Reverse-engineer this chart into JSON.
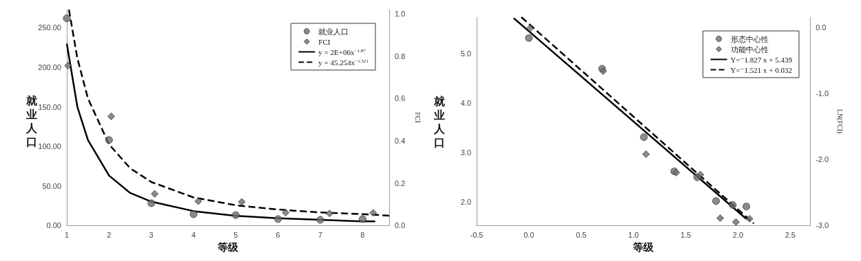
{
  "chart_data": [
    {
      "type": "scatter",
      "xlabel": "等级",
      "ylabel": "就业人口",
      "y2label": "FCI",
      "xlim": [
        1,
        8.63
      ],
      "xticks": [
        1,
        2,
        3,
        4,
        5,
        6,
        7,
        8
      ],
      "ylim": [
        0,
        273
      ],
      "yticks": [
        {
          "value": 0,
          "label": "0.00"
        },
        {
          "value": 50,
          "label": "50.00"
        },
        {
          "value": 100,
          "label": "100.00"
        },
        {
          "value": 150,
          "label": "150.00"
        },
        {
          "value": 200,
          "label": "200.00"
        },
        {
          "value": 250,
          "label": "250.00"
        }
      ],
      "y2lim": [
        0,
        1.02
      ],
      "y2ticks": [
        {
          "value": 0,
          "label": "0.0"
        },
        {
          "value": 0.2,
          "label": "0.2"
        },
        {
          "value": 0.4,
          "label": "0.4"
        },
        {
          "value": 0.6,
          "label": "0.6"
        },
        {
          "value": 0.8,
          "label": "0.8"
        },
        {
          "value": 1,
          "label": "1.0"
        }
      ],
      "grid": false,
      "legend": "top right",
      "series": [
        {
          "name": "就业人口",
          "marker": "circle",
          "color": "#6e6e6e",
          "x": [
            1,
            2,
            3,
            4,
            5,
            6,
            7,
            8
          ],
          "values": [
            262,
            108,
            28,
            14,
            13,
            8,
            7,
            8
          ]
        },
        {
          "name": "FCI",
          "marker": "diamond",
          "axis": "y2",
          "color": "#6e6e6e",
          "x": [
            1.03,
            2.05,
            3.08,
            4.11,
            5.14,
            6.18,
            7.22,
            8.25
          ],
          "values": [
            0.755,
            0.515,
            0.149,
            0.114,
            0.111,
            0.06,
            0.056,
            0.059
          ]
        },
        {
          "name": "y = 2E+06x$^{−1.87}$",
          "type": "line",
          "marker": "none",
          "line_style": "solid",
          "color": "#000000",
          "x": [
            1,
            1.25,
            1.5,
            2,
            2.5,
            3,
            4,
            5,
            6,
            7,
            8,
            8.3
          ],
          "values": [
            230,
            150,
            108,
            63,
            41,
            30,
            18,
            12,
            9,
            7,
            5,
            5
          ]
        },
        {
          "name": "y = 45.254x$^{−1.521}$",
          "type": "line",
          "marker": "none",
          "line_style": "dashed",
          "axis": "y2",
          "color": "#000000",
          "x": [
            1.05,
            1.25,
            1.5,
            2,
            2.5,
            3,
            4,
            5,
            6,
            7,
            8,
            8.63
          ],
          "values": [
            1.02,
            0.79,
            0.6,
            0.383,
            0.27,
            0.205,
            0.132,
            0.095,
            0.075,
            0.061,
            0.053,
            0.046
          ]
        }
      ]
    },
    {
      "type": "scatter",
      "xlabel": "等级",
      "ylabel": "就业人口",
      "y2label": "LN(FCI)",
      "xlim": [
        -0.5,
        2.69
      ],
      "xticks": [
        {
          "value": -0.5,
          "label": "-0.5"
        },
        {
          "value": 0,
          "label": "0.0"
        },
        {
          "value": 0.5,
          "label": "0.5"
        },
        {
          "value": 1,
          "label": "1.0"
        },
        {
          "value": 1.5,
          "label": "1.5"
        },
        {
          "value": 2,
          "label": "2.0"
        },
        {
          "value": 2.5,
          "label": "2.5"
        }
      ],
      "ylim": [
        1.53,
        5.73
      ],
      "yticks": [
        {
          "value": 2,
          "label": "2.0"
        },
        {
          "value": 3,
          "label": "3.0"
        },
        {
          "value": 4,
          "label": "4.0"
        },
        {
          "value": 5,
          "label": "5.0"
        }
      ],
      "y2lim": [
        -3,
        0.16
      ],
      "y2ticks": [
        {
          "value": -3,
          "label": "-3.0"
        },
        {
          "value": -2,
          "label": "-2.0"
        },
        {
          "value": -1,
          "label": "-1.0"
        },
        {
          "value": 0,
          "label": "0.0"
        }
      ],
      "grid": false,
      "legend": "top right",
      "series": [
        {
          "name": "形态中心性",
          "marker": "circle",
          "color": "#6e6e6e",
          "x": [
            0,
            0.7,
            1.1,
            1.39,
            1.61,
            1.79,
            1.95,
            2.08
          ],
          "values": [
            5.31,
            4.69,
            3.31,
            2.62,
            2.5,
            2.02,
            1.94,
            1.91
          ]
        },
        {
          "name": "功能中心性",
          "marker": "diamond",
          "axis": "y2",
          "color": "#6e6e6e",
          "x": [
            0.01,
            0.71,
            1.12,
            1.41,
            1.64,
            1.83,
            1.98,
            2.11
          ],
          "values": [
            -0.01,
            -0.66,
            -1.92,
            -2.2,
            -2.23,
            -2.89,
            -2.95,
            -2.9
          ]
        },
        {
          "name": "Y=⁻1.827 x + 5.439",
          "type": "line",
          "marker": "none",
          "line_style": "solid",
          "color": "#000000",
          "x": [
            -0.145,
            2.08
          ],
          "values": [
            5.71,
            1.66
          ]
        },
        {
          "name": "Y=⁻1.521 x + 0.032",
          "type": "line",
          "marker": "none",
          "line_style": "dashed",
          "axis": "y2",
          "color": "#000000",
          "x": [
            -0.072,
            2.15
          ],
          "values": [
            0.16,
            -2.97
          ]
        }
      ]
    }
  ]
}
